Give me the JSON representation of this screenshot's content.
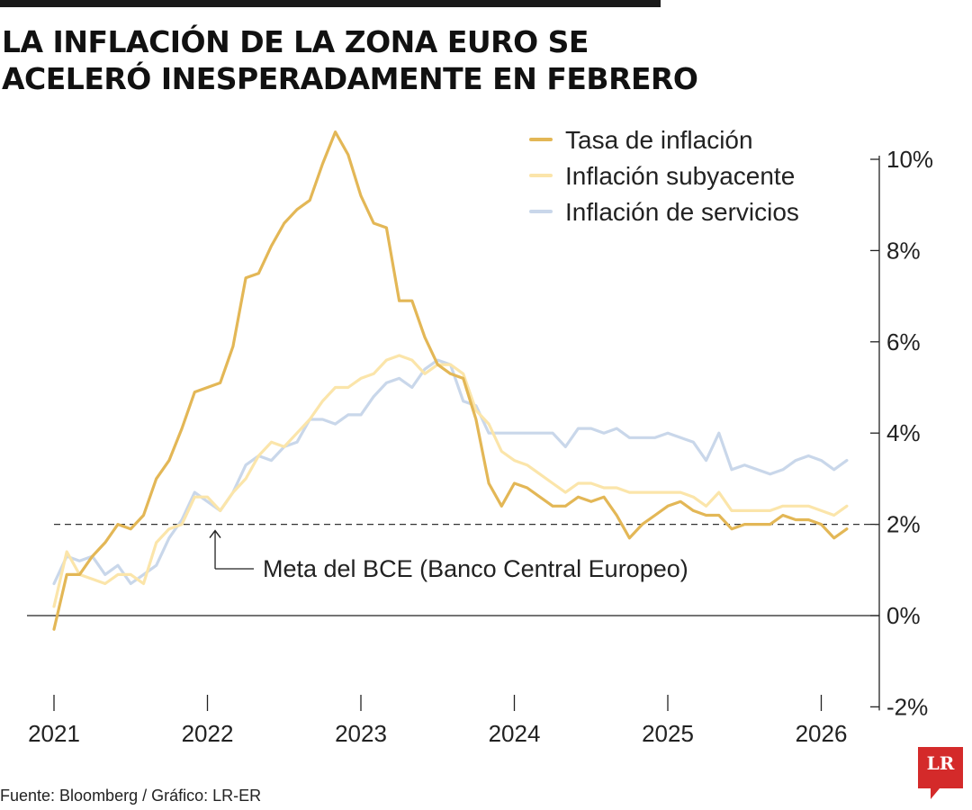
{
  "header": {
    "title_line1": "LA INFLACIÓN DE LA ZONA EURO SE",
    "title_line2": "ACELERÓ INESPERADAMENTE EN FEBRERO"
  },
  "footer": {
    "source": "Fuente: Bloomberg / Gráfico: LR-ER"
  },
  "logo": {
    "text": "LR",
    "color": "#d42a2a"
  },
  "chart_data": {
    "type": "line",
    "title": "LA INFLACIÓN DE LA ZONA EURO SE ACELERÓ INESPERADAMENTE EN FEBRERO",
    "xlabel": "",
    "ylabel": "",
    "x_start": 2021.0,
    "x_step_months": 1,
    "xlim": [
      2020.95,
      2026.3
    ],
    "ylim": [
      -2,
      10
    ],
    "x_ticks": [
      2021,
      2022,
      2023,
      2024,
      2025,
      2026
    ],
    "x_tick_labels": [
      "2021",
      "2022",
      "2023",
      "2024",
      "2025",
      "2026"
    ],
    "y_ticks": [
      -2,
      0,
      2,
      4,
      6,
      8,
      10
    ],
    "y_tick_labels": [
      "-2%",
      "0%",
      "2%",
      "4%",
      "6%",
      "8%",
      "10%"
    ],
    "legend_position": "top-right",
    "grid": false,
    "reference_line": {
      "y": 2,
      "label": "Meta del BCE (Banco Central Europeo)",
      "style": "dashed"
    },
    "series": [
      {
        "name": "Tasa de inflación",
        "color": "#e3b756",
        "width": 3.2,
        "values": [
          -0.3,
          0.9,
          0.9,
          1.3,
          1.6,
          2.0,
          1.9,
          2.2,
          3.0,
          3.4,
          4.1,
          4.9,
          5.0,
          5.1,
          5.9,
          7.4,
          7.5,
          8.1,
          8.6,
          8.9,
          9.1,
          9.9,
          10.6,
          10.1,
          9.2,
          8.6,
          8.5,
          6.9,
          6.9,
          6.1,
          5.5,
          5.3,
          5.2,
          4.3,
          2.9,
          2.4,
          2.9,
          2.8,
          2.6,
          2.4,
          2.4,
          2.6,
          2.5,
          2.6,
          2.2,
          1.7,
          2.0,
          2.2,
          2.4,
          2.5,
          2.3,
          2.2,
          2.2,
          1.9,
          2.0,
          2.0,
          2.0,
          2.2,
          2.1,
          2.1,
          2.0,
          1.7,
          1.9
        ]
      },
      {
        "name": "Inflación subyacente",
        "color": "#fbe5aa",
        "width": 3.2,
        "values": [
          0.2,
          1.4,
          0.9,
          0.8,
          0.7,
          0.9,
          0.9,
          0.7,
          1.6,
          1.9,
          2.0,
          2.6,
          2.6,
          2.3,
          2.7,
          3.0,
          3.5,
          3.8,
          3.7,
          4.0,
          4.3,
          4.7,
          5.0,
          5.0,
          5.2,
          5.3,
          5.6,
          5.7,
          5.6,
          5.3,
          5.5,
          5.5,
          5.3,
          4.5,
          4.2,
          3.6,
          3.4,
          3.3,
          3.1,
          2.9,
          2.7,
          2.9,
          2.9,
          2.8,
          2.8,
          2.7,
          2.7,
          2.7,
          2.7,
          2.7,
          2.6,
          2.4,
          2.7,
          2.3,
          2.3,
          2.3,
          2.3,
          2.4,
          2.4,
          2.4,
          2.3,
          2.2,
          2.4
        ]
      },
      {
        "name": "Inflación de servicios",
        "color": "#c9d7ea",
        "width": 3.2,
        "values": [
          0.7,
          1.3,
          1.2,
          1.3,
          0.9,
          1.1,
          0.7,
          0.9,
          1.1,
          1.7,
          2.1,
          2.7,
          2.5,
          2.3,
          2.7,
          3.3,
          3.5,
          3.4,
          3.7,
          3.8,
          4.3,
          4.3,
          4.2,
          4.4,
          4.4,
          4.8,
          5.1,
          5.2,
          5.0,
          5.4,
          5.6,
          5.5,
          4.7,
          4.6,
          4.0,
          4.0,
          4.0,
          4.0,
          4.0,
          4.0,
          3.7,
          4.1,
          4.1,
          4.0,
          4.1,
          3.9,
          3.9,
          3.9,
          4.0,
          3.9,
          3.8,
          3.4,
          4.0,
          3.2,
          3.3,
          3.2,
          3.1,
          3.2,
          3.4,
          3.5,
          3.4,
          3.2,
          3.4
        ]
      }
    ]
  }
}
